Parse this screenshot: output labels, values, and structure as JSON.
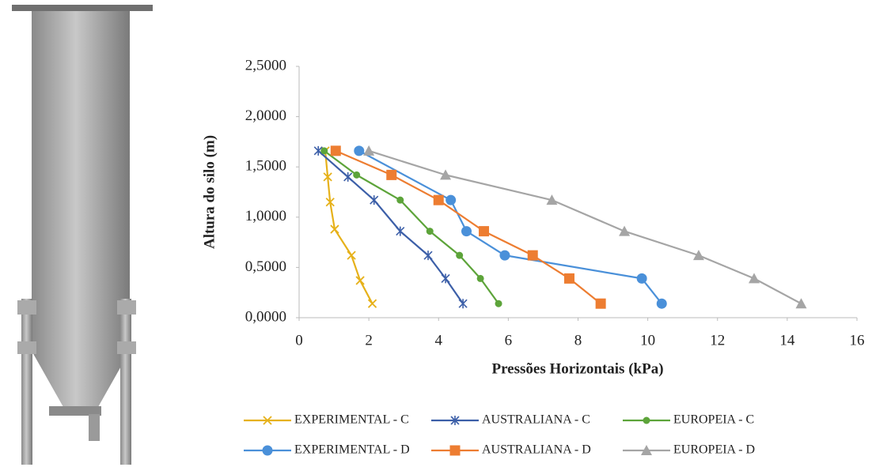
{
  "chart_data": {
    "type": "line",
    "x_label": "Pressões Horizontais  (kPa)",
    "y_label": "Altura  do silo  (m)",
    "xlim": [
      0,
      16
    ],
    "xticks": [
      0,
      2,
      4,
      6,
      8,
      10,
      12,
      14,
      16
    ],
    "ylim": [
      0,
      2.5
    ],
    "yticks": [
      {
        "value": 0,
        "label": "0,0000"
      },
      {
        "value": 0.5,
        "label": "0,5000"
      },
      {
        "value": 1,
        "label": "1,0000"
      },
      {
        "value": 1.5,
        "label": "1,5000"
      },
      {
        "value": 2,
        "label": "2,0000"
      },
      {
        "value": 2.5,
        "label": "2,5000"
      }
    ],
    "grid": false,
    "series": [
      {
        "name": "EXPERIMENTAL - C",
        "color": "#e6b11a",
        "marker": "x",
        "x": [
          0.75,
          0.82,
          0.89,
          1.02,
          1.5,
          1.75,
          2.1
        ],
        "values": [
          1.66,
          1.4,
          1.15,
          0.88,
          0.62,
          0.37,
          0.14
        ]
      },
      {
        "name": "AUSTRALIANA - C",
        "color": "#3c5fa8",
        "marker": "star",
        "x": [
          0.55,
          1.4,
          2.15,
          2.9,
          3.7,
          4.2,
          4.7
        ],
        "values": [
          1.66,
          1.4,
          1.17,
          0.86,
          0.62,
          0.39,
          0.14
        ]
      },
      {
        "name": "EUROPEIA - C",
        "color": "#5da43a",
        "marker": "dot",
        "x": [
          0.72,
          1.65,
          2.9,
          3.75,
          4.6,
          5.2,
          5.72
        ],
        "values": [
          1.66,
          1.42,
          1.17,
          0.86,
          0.62,
          0.39,
          0.14
        ]
      },
      {
        "name": "EXPERIMENTAL - D",
        "color": "#4a90d9",
        "marker": "circle",
        "x": [
          1.72,
          4.35,
          4.8,
          5.9,
          9.83,
          10.4
        ],
        "values": [
          1.66,
          1.17,
          0.86,
          0.62,
          0.39,
          0.14
        ]
      },
      {
        "name": "AUSTRALIANA - D",
        "color": "#ed7d31",
        "marker": "square",
        "x": [
          1.05,
          2.65,
          4.0,
          5.3,
          6.7,
          7.75,
          8.65
        ],
        "values": [
          1.66,
          1.42,
          1.17,
          0.86,
          0.62,
          0.39,
          0.14
        ]
      },
      {
        "name": "EUROPEIA - D",
        "color": "#a5a5a5",
        "marker": "triangle",
        "x": [
          2.0,
          4.2,
          7.25,
          9.33,
          11.46,
          13.05,
          14.4
        ],
        "values": [
          1.66,
          1.42,
          1.17,
          0.86,
          0.62,
          0.39,
          0.14
        ]
      }
    ]
  }
}
